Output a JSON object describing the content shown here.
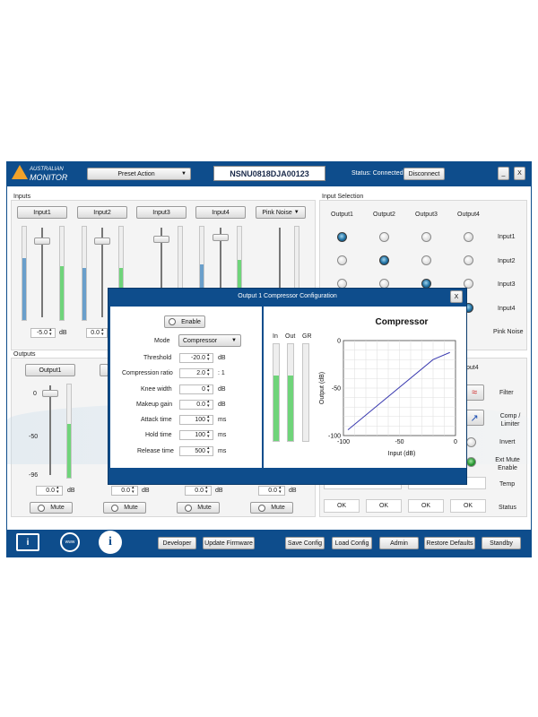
{
  "app": {
    "logo_line1": "AUSTRALIAN",
    "logo_line2": "MONITOR",
    "preset_action": "Preset Action",
    "serial": "NSNU0818DJA00123",
    "status": "Status: Connected",
    "disconnect": "Disconnect",
    "minimize": "_",
    "close": "X"
  },
  "inputs": {
    "title": "Inputs",
    "channels": [
      {
        "label": "Input1",
        "value": "-5.0",
        "unit": "dB"
      },
      {
        "label": "Input2",
        "value": "0.0"
      },
      {
        "label": "Input3"
      },
      {
        "label": "Input4"
      }
    ],
    "pink_noise": "Pink Noise"
  },
  "input_selection": {
    "title": "Input Selection",
    "columns": [
      "Output1",
      "Output2",
      "Output3",
      "Output4"
    ],
    "rows": [
      "Input1",
      "Input2",
      "Input3",
      "Input4",
      "Pink Noise"
    ]
  },
  "outputs": {
    "title": "Outputs",
    "channel1": "Output1",
    "scale": [
      "0",
      "-50",
      "-96"
    ],
    "values": [
      "0.0",
      "0.0",
      "0.0",
      "0.0"
    ],
    "unit": "dB",
    "mute": "Mute",
    "channel4_partial": "put4"
  },
  "output_side": {
    "labels": [
      "Filter",
      "Comp / Limiter",
      "Invert",
      "Ext Mute Enable",
      "Temp",
      "Status"
    ],
    "status_values": [
      "OK",
      "OK",
      "OK",
      "OK"
    ]
  },
  "dialog": {
    "title": "Output 1 Compressor Configuration",
    "close": "X",
    "enable": "Enable",
    "mode_label": "Mode",
    "mode_value": "Compressor",
    "params": [
      {
        "label": "Threshold",
        "value": "-20.0",
        "unit": "dB"
      },
      {
        "label": "Compression ratio",
        "value": "2.0",
        "unit": ": 1"
      },
      {
        "label": "Knee width",
        "value": "0",
        "unit": "dB"
      },
      {
        "label": "Makeup gain",
        "value": "0.0",
        "unit": "dB"
      },
      {
        "label": "Attack time",
        "value": "100",
        "unit": "ms"
      },
      {
        "label": "Hold time",
        "value": "100",
        "unit": "ms"
      },
      {
        "label": "Release time",
        "value": "500",
        "unit": "ms"
      }
    ],
    "meters": [
      "In",
      "Out",
      "GR"
    ]
  },
  "chart_data": {
    "type": "line",
    "title": "Compressor",
    "xlabel": "Input (dB)",
    "ylabel": "Output (dB)",
    "xlim": [
      -100,
      0
    ],
    "ylim": [
      -100,
      0
    ],
    "xticks": [
      "-100",
      "-50",
      "0"
    ],
    "yticks": [
      "0",
      "-50",
      "-100"
    ],
    "grid": true,
    "series": [
      {
        "x": [
          -96,
          -20,
          -5
        ],
        "y": [
          -94,
          -20,
          -12.5
        ],
        "color": "#3b3bb0"
      }
    ]
  },
  "toolbar": {
    "developer": "Developer",
    "update_firmware": "Update Firmware",
    "save_config": "Save Config",
    "load_config": "Load Config",
    "admin": "Admin",
    "restore_defaults": "Restore Defaults",
    "standby": "Standby",
    "www": "www",
    "info": "i"
  }
}
